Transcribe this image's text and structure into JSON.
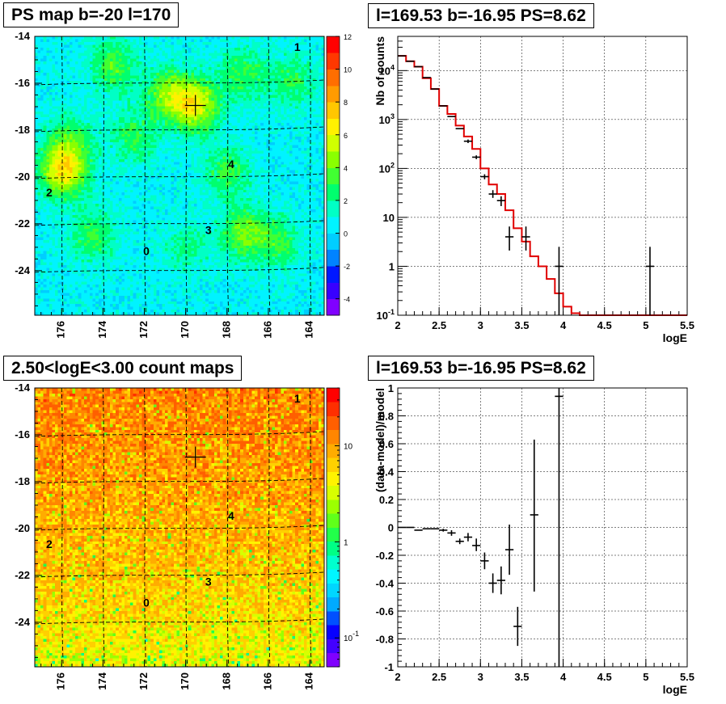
{
  "titles": {
    "top_left": "PS map b=-20 l=170",
    "top_right": "l=169.53 b=-16.95 PS=8.62",
    "bottom_left": "2.50<logE<3.00 count maps",
    "bottom_right": "l=169.53 b=-16.95 PS=8.62"
  },
  "colors": {
    "data": "#000000",
    "model": "#e00000",
    "grid": "#000000",
    "frame": "#000000"
  },
  "chart_data": [
    {
      "type": "heatmap",
      "title": "PS map b=-20 l=170",
      "x_ticks": [
        "176",
        "174",
        "172",
        "170",
        "168",
        "166",
        "164"
      ],
      "x_tick_values": [
        176,
        174,
        172,
        170,
        168,
        166,
        164
      ],
      "y_ticks": [
        "-14",
        "-16",
        "-18",
        "-20",
        "-22",
        "-24"
      ],
      "y_tick_values": [
        -14,
        -16,
        -18,
        -20,
        -22,
        -24
      ],
      "xlim": [
        177.3,
        163.3
      ],
      "ylim": [
        -25.9,
        -14
      ],
      "colorbar_ticks": [
        "12",
        "10",
        "8",
        "6",
        "4",
        "2",
        "0",
        "-2",
        "-4"
      ],
      "colorbar_values": [
        12,
        10,
        8,
        6,
        4,
        2,
        0,
        -2,
        -4
      ],
      "colorbar_range": [
        -5,
        12
      ],
      "background_value": 0.5,
      "blobs": [
        {
          "l": 173.5,
          "b": -15.3,
          "v": 3.0
        },
        {
          "l": 170.8,
          "b": -16.5,
          "v": 3.8
        },
        {
          "l": 169.5,
          "b": -16.95,
          "v": 5.0
        },
        {
          "l": 167.2,
          "b": -15.6,
          "v": 2.7
        },
        {
          "l": 164.8,
          "b": -15.9,
          "v": 2.3
        },
        {
          "l": 175.6,
          "b": -18.4,
          "v": 2.2
        },
        {
          "l": 172.5,
          "b": -18.3,
          "v": 2.4
        },
        {
          "l": 168.0,
          "b": -19.8,
          "v": 2.6
        },
        {
          "l": 175.9,
          "b": -19.7,
          "v": 6.0
        },
        {
          "l": 174.5,
          "b": -22.5,
          "v": 2.6
        },
        {
          "l": 167.2,
          "b": -22.4,
          "v": 3.5
        },
        {
          "l": 165.5,
          "b": -22.8,
          "v": 2.4
        },
        {
          "l": 170.0,
          "b": -23.0,
          "v": 1.6
        }
      ],
      "labels": [
        {
          "text": "1",
          "l": 164.6,
          "b": -14.5
        },
        {
          "text": "4",
          "l": 167.8,
          "b": -19.5
        },
        {
          "text": "2",
          "l": 176.6,
          "b": -20.7
        },
        {
          "text": "3",
          "l": 168.9,
          "b": -22.3
        },
        {
          "text": "0",
          "l": 171.9,
          "b": -23.2
        }
      ],
      "marker": {
        "l": 169.53,
        "b": -16.95
      }
    },
    {
      "type": "line",
      "title": "l=169.53 b=-16.95 PS=8.62",
      "xlabel": "logE",
      "ylabel": "Nb of counts",
      "xlim": [
        2,
        5.5
      ],
      "ylim": [
        0.1,
        50000
      ],
      "yscale": "log",
      "x_ticks": [
        "2",
        "2.5",
        "3",
        "3.5",
        "4",
        "4.5",
        "5",
        "5.5"
      ],
      "y_ticks": [
        {
          "label": "10",
          "sup": "-1",
          "value": 0.1
        },
        {
          "label": "1",
          "sup": "",
          "value": 1
        },
        {
          "label": "10",
          "sup": "",
          "value": 10
        },
        {
          "label": "10",
          "sup": "2",
          "value": 100
        },
        {
          "label": "10",
          "sup": "3",
          "value": 1000
        },
        {
          "label": "10",
          "sup": "4",
          "value": 10000
        }
      ],
      "grid": true,
      "model": {
        "name": "model",
        "edges": [
          2.0,
          2.1,
          2.2,
          2.3,
          2.4,
          2.5,
          2.6,
          2.7,
          2.8,
          2.9,
          3.0,
          3.1,
          3.2,
          3.3,
          3.4,
          3.5,
          3.6,
          3.7,
          3.8,
          3.9,
          4.0,
          4.1,
          4.2,
          5.5
        ],
        "values": [
          20000,
          15500,
          12000,
          7000,
          4200,
          1900,
          1300,
          750,
          450,
          250,
          100,
          47,
          30,
          14,
          6,
          3.2,
          1.6,
          1.0,
          0.55,
          0.28,
          0.15,
          0.11,
          0.1
        ]
      },
      "data": [
        {
          "x": 2.05,
          "y": 20000,
          "xerr": 0.05,
          "ylo": 20000,
          "yhi": 20000
        },
        {
          "x": 2.15,
          "y": 15500,
          "xerr": 0.05,
          "ylo": 15500,
          "yhi": 15500
        },
        {
          "x": 2.25,
          "y": 12000,
          "xerr": 0.05,
          "ylo": 12000,
          "yhi": 12000
        },
        {
          "x": 2.35,
          "y": 7200,
          "xerr": 0.05,
          "ylo": 7200,
          "yhi": 7200
        },
        {
          "x": 2.45,
          "y": 4200,
          "xerr": 0.05,
          "ylo": 4200,
          "yhi": 4200
        },
        {
          "x": 2.55,
          "y": 1900,
          "xerr": 0.05,
          "ylo": 1900,
          "yhi": 1900
        },
        {
          "x": 2.65,
          "y": 1150,
          "xerr": 0.05,
          "ylo": 1150,
          "yhi": 1150
        },
        {
          "x": 2.75,
          "y": 650,
          "xerr": 0.05,
          "ylo": 650,
          "yhi": 650
        },
        {
          "x": 2.85,
          "y": 360,
          "xerr": 0.05,
          "ylo": 330,
          "yhi": 390
        },
        {
          "x": 2.95,
          "y": 170,
          "xerr": 0.05,
          "ylo": 155,
          "yhi": 185
        },
        {
          "x": 3.05,
          "y": 68,
          "xerr": 0.05,
          "ylo": 60,
          "yhi": 76
        },
        {
          "x": 3.15,
          "y": 30,
          "xerr": 0.05,
          "ylo": 25,
          "yhi": 36
        },
        {
          "x": 3.25,
          "y": 22,
          "xerr": 0.05,
          "ylo": 17,
          "yhi": 27
        },
        {
          "x": 3.35,
          "y": 4,
          "xerr": 0.05,
          "ylo": 2.1,
          "yhi": 6.5
        },
        {
          "x": 3.55,
          "y": 4,
          "xerr": 0.05,
          "ylo": 2.1,
          "yhi": 6.5
        },
        {
          "x": 3.95,
          "y": 1,
          "xerr": 0.05,
          "ylo": 0.1,
          "yhi": 2.5
        },
        {
          "x": 5.05,
          "y": 1,
          "xerr": 0.05,
          "ylo": 0.1,
          "yhi": 2.5
        }
      ]
    },
    {
      "type": "heatmap",
      "title": "2.50<logE<3.00 count maps",
      "x_ticks": [
        "176",
        "174",
        "172",
        "170",
        "168",
        "166",
        "164"
      ],
      "x_tick_values": [
        176,
        174,
        172,
        170,
        168,
        166,
        164
      ],
      "y_ticks": [
        "-14",
        "-16",
        "-18",
        "-20",
        "-22",
        "-24"
      ],
      "y_tick_values": [
        -14,
        -16,
        -18,
        -20,
        -22,
        -24
      ],
      "xlim": [
        177.3,
        163.3
      ],
      "ylim": [
        -25.9,
        -14
      ],
      "colorscale": "log",
      "colorbar_ticks": [
        {
          "label": "10",
          "sup": "",
          "value": 10
        },
        {
          "label": "1",
          "sup": "",
          "value": 1
        },
        {
          "label": "10",
          "sup": "-1",
          "value": 0.1
        }
      ],
      "colorbar_range": [
        0.05,
        40
      ],
      "gradient": {
        "top_value": 14,
        "bottom_value": 4
      },
      "labels": [
        {
          "text": "1",
          "l": 164.6,
          "b": -14.5
        },
        {
          "text": "4",
          "l": 167.8,
          "b": -19.5
        },
        {
          "text": "2",
          "l": 176.6,
          "b": -20.7
        },
        {
          "text": "3",
          "l": 168.9,
          "b": -22.3
        },
        {
          "text": "0",
          "l": 171.9,
          "b": -23.2
        }
      ],
      "marker": {
        "l": 169.53,
        "b": -16.95
      }
    },
    {
      "type": "scatter",
      "title": "l=169.53 b=-16.95 PS=8.62",
      "xlabel": "logE",
      "ylabel": "(data-model)/model",
      "xlim": [
        2,
        5.5
      ],
      "ylim": [
        -1,
        1
      ],
      "x_ticks": [
        "2",
        "2.5",
        "3",
        "3.5",
        "4",
        "4.5",
        "5",
        "5.5"
      ],
      "y_ticks": [
        "-1",
        "-0.8",
        "-0.6",
        "-0.4",
        "-0.2",
        "0",
        "0.2",
        "0.4",
        "0.6",
        "0.8",
        "1"
      ],
      "grid": true,
      "data": [
        {
          "x": 2.05,
          "y": 0.0,
          "xerr": 0.05,
          "ylo": 0.0,
          "yhi": 0.0
        },
        {
          "x": 2.15,
          "y": 0.0,
          "xerr": 0.05,
          "ylo": 0.0,
          "yhi": 0.0
        },
        {
          "x": 2.25,
          "y": -0.02,
          "xerr": 0.05,
          "ylo": -0.02,
          "yhi": -0.02
        },
        {
          "x": 2.35,
          "y": -0.01,
          "xerr": 0.05,
          "ylo": -0.01,
          "yhi": -0.01
        },
        {
          "x": 2.45,
          "y": -0.01,
          "xerr": 0.05,
          "ylo": -0.01,
          "yhi": -0.01
        },
        {
          "x": 2.55,
          "y": -0.02,
          "xerr": 0.05,
          "ylo": -0.03,
          "yhi": -0.01
        },
        {
          "x": 2.65,
          "y": -0.04,
          "xerr": 0.05,
          "ylo": -0.06,
          "yhi": -0.02
        },
        {
          "x": 2.75,
          "y": -0.1,
          "xerr": 0.05,
          "ylo": -0.12,
          "yhi": -0.08
        },
        {
          "x": 2.85,
          "y": -0.07,
          "xerr": 0.05,
          "ylo": -0.1,
          "yhi": -0.04
        },
        {
          "x": 2.95,
          "y": -0.13,
          "xerr": 0.05,
          "ylo": -0.17,
          "yhi": -0.08
        },
        {
          "x": 3.05,
          "y": -0.24,
          "xerr": 0.05,
          "ylo": -0.3,
          "yhi": -0.18
        },
        {
          "x": 3.15,
          "y": -0.4,
          "xerr": 0.05,
          "ylo": -0.47,
          "yhi": -0.33
        },
        {
          "x": 3.25,
          "y": -0.38,
          "xerr": 0.05,
          "ylo": -0.48,
          "yhi": -0.28
        },
        {
          "x": 3.35,
          "y": -0.16,
          "xerr": 0.05,
          "ylo": -0.34,
          "yhi": 0.02
        },
        {
          "x": 3.45,
          "y": -0.71,
          "xerr": 0.05,
          "ylo": -0.85,
          "yhi": -0.57
        },
        {
          "x": 3.65,
          "y": 0.09,
          "xerr": 0.05,
          "ylo": -0.46,
          "yhi": 0.63
        },
        {
          "x": 3.95,
          "y": 0.94,
          "xerr": 0.05,
          "ylo": -1.0,
          "yhi": 1.0
        }
      ]
    }
  ]
}
